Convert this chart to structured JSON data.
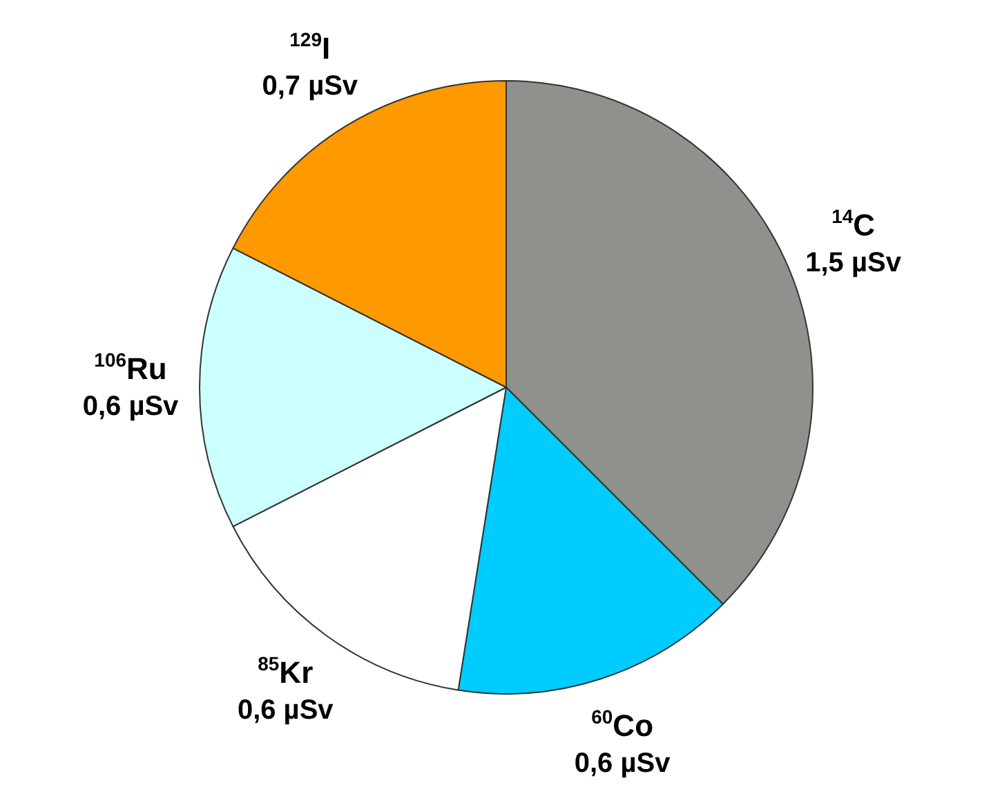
{
  "chart_data": {
    "type": "pie",
    "categories": [
      "$^{14}$C",
      "$^{60}$Co",
      "$^{85}$Kr",
      "$^{106}$Ru",
      "$^{129}$I"
    ],
    "values": [
      1.5,
      0.6,
      0.6,
      0.6,
      0.7
    ],
    "value_labels": [
      "1,5 µSv",
      "0,6 µSv",
      "0,6 µSv",
      "0,6 µSv",
      "0,7 µSv"
    ],
    "colors": [
      "#8f918c",
      "#00ccff",
      "#ffffff",
      "#ccffff",
      "#ff9900"
    ],
    "legend": false
  }
}
